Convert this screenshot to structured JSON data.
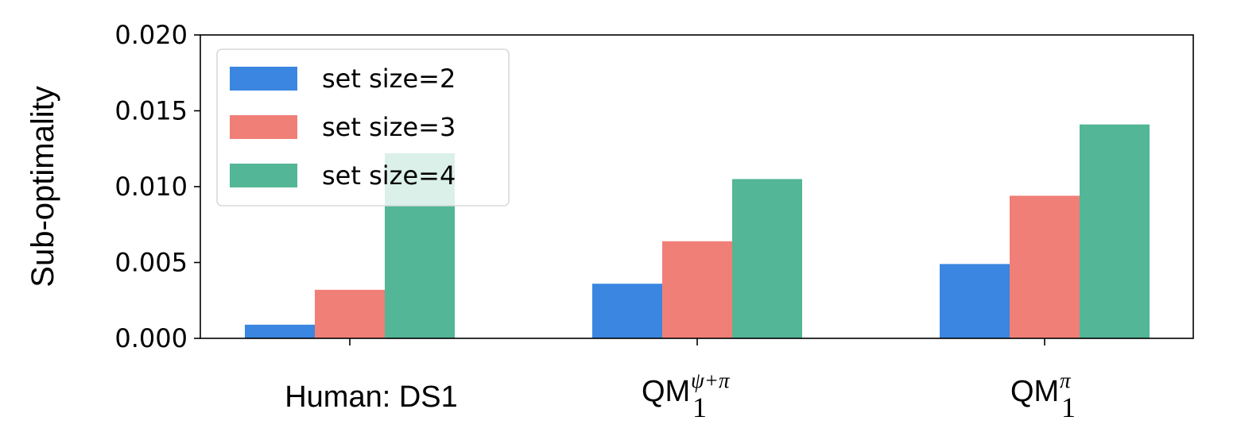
{
  "chart_data": {
    "type": "bar",
    "title": "",
    "xlabel": "",
    "ylabel": "Sub-optimality",
    "ylim": [
      0,
      0.02
    ],
    "yticks": [
      "0.000",
      "0.005",
      "0.010",
      "0.015",
      "0.020"
    ],
    "categories": [
      {
        "base": "Human: DS1",
        "sub": "",
        "sup": ""
      },
      {
        "base": "QM",
        "sub": "1",
        "sup": "ψ+π"
      },
      {
        "base": "QM",
        "sub": "1",
        "sup": "π"
      }
    ],
    "series": [
      {
        "name": "set size=2",
        "color": "#3a86e0",
        "values": [
          0.0009,
          0.0036,
          0.0049
        ]
      },
      {
        "name": "set size=3",
        "color": "#f07f78",
        "values": [
          0.0032,
          0.0064,
          0.0094
        ]
      },
      {
        "name": "set size=4",
        "color": "#52b697",
        "values": [
          0.0122,
          0.0105,
          0.0141
        ]
      }
    ],
    "legend": "upper-left",
    "grid": false
  }
}
